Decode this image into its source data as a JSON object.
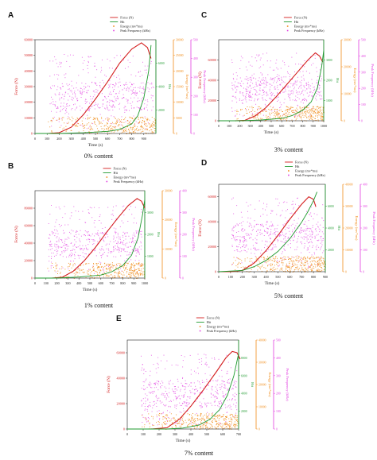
{
  "colors": {
    "force": "#d42020",
    "hit": "#1f9a2f",
    "energy": "#f08c1a",
    "peak": "#e23fe0",
    "axis": "#222222"
  },
  "chart_data": [
    {
      "letter": "A",
      "caption": "0% content",
      "type": "line",
      "xlabel": "Time (s)",
      "ylabel": "Force (N)",
      "hit_label": "Hit",
      "energy_label": "Energy (mv*ms)",
      "peak_label": "Peak Frequency (kHz)",
      "legend": [
        "Force (N)",
        "Hit",
        "Energy (mv*ms)",
        "Peak Frequency (kHz)"
      ],
      "xlim": [
        0,
        1000
      ],
      "ylim": [
        0,
        60000
      ],
      "xticks": [
        "0",
        "100",
        "200",
        "300",
        "400",
        "500",
        "600",
        "700",
        "800",
        "900"
      ],
      "yticks": [
        "0",
        "10000",
        "20000",
        "30000",
        "40000",
        "50000",
        "60000"
      ],
      "hit_ticks": [
        "2000",
        "4000",
        "6000"
      ],
      "energy_ticks": [
        "0",
        "5000",
        "10000",
        "15000",
        "20000",
        "25000",
        "30000"
      ],
      "peak_ticks": [
        "0",
        "100",
        "200",
        "300",
        "400",
        "500"
      ],
      "series": [
        {
          "name": "Force (N)",
          "x": [
            0,
            100,
            200,
            300,
            400,
            500,
            600,
            700,
            800,
            880,
            930,
            960
          ],
          "y": [
            0,
            0,
            500,
            4000,
            12000,
            22000,
            33000,
            45000,
            54000,
            58000,
            55000,
            48000
          ]
        },
        {
          "name": "Hit",
          "x": [
            0,
            200,
            400,
            600,
            700,
            800,
            850,
            900,
            940,
            960
          ],
          "y": [
            0,
            0,
            50,
            150,
            300,
            700,
            1300,
            2600,
            4600,
            6500
          ]
        }
      ]
    },
    {
      "letter": "B",
      "caption": "1% content",
      "type": "line",
      "xlabel": "Time (s)",
      "ylabel": "Force (N)",
      "hit_label": "Hit",
      "energy_label": "Energy (mv*ms)",
      "peak_label": "Peak Frequency (kHz)",
      "legend": [
        "Force (N)",
        "Hit",
        "Energy (mv*ms)",
        "Peak Frequency (kHz)"
      ],
      "xlim": [
        0,
        1000
      ],
      "ylim": [
        0,
        100000
      ],
      "xticks": [
        "0",
        "100",
        "200",
        "300",
        "400",
        "500",
        "600",
        "700",
        "800",
        "900",
        "1000"
      ],
      "yticks": [
        "0",
        "20000",
        "40000",
        "60000",
        "80000"
      ],
      "hit_ticks": [
        "1000",
        "2000",
        "3000"
      ],
      "energy_ticks": [
        "0",
        "10000",
        "20000",
        "30000"
      ],
      "peak_ticks": [
        "0",
        "100",
        "200",
        "300",
        "400"
      ],
      "series": [
        {
          "name": "Force (N)",
          "x": [
            0,
            150,
            250,
            350,
            450,
            550,
            650,
            750,
            850,
            930,
            970,
            1000
          ],
          "y": [
            0,
            0,
            1000,
            8000,
            20000,
            35000,
            52000,
            68000,
            83000,
            91000,
            88000,
            80000
          ]
        },
        {
          "name": "Hit",
          "x": [
            0,
            200,
            400,
            600,
            700,
            800,
            880,
            940,
            980,
            1000
          ],
          "y": [
            0,
            0,
            40,
            120,
            250,
            500,
            900,
            1600,
            2500,
            3100
          ]
        }
      ]
    },
    {
      "letter": "C",
      "caption": "3% content",
      "type": "line",
      "xlabel": "Time (s)",
      "ylabel": "Force (N)",
      "hit_label": "Hit",
      "energy_label": "Energy (mv*ms)",
      "peak_label": "Peak Frequency (kHz)",
      "legend": [
        "Force (N)",
        "Hit",
        "Energy (mv*ms)",
        "Peak Frequency (kHz)"
      ],
      "xlim": [
        0,
        1000
      ],
      "ylim": [
        0,
        80000
      ],
      "xticks": [
        "0",
        "100",
        "200",
        "300",
        "400",
        "500",
        "600",
        "700",
        "800",
        "900",
        "1000"
      ],
      "yticks": [
        "0",
        "20000",
        "40000",
        "60000"
      ],
      "hit_ticks": [
        "1000",
        "2000",
        "3000"
      ],
      "energy_ticks": [
        "0",
        "10000",
        "20000",
        "30000"
      ],
      "peak_ticks": [
        "0",
        "100",
        "200",
        "300",
        "400",
        "500"
      ],
      "series": [
        {
          "name": "Force (N)",
          "x": [
            0,
            150,
            250,
            350,
            450,
            550,
            650,
            750,
            850,
            920,
            960,
            990
          ],
          "y": [
            0,
            0,
            500,
            5000,
            13000,
            24000,
            36000,
            48000,
            60000,
            67000,
            64000,
            58000
          ]
        },
        {
          "name": "Hit",
          "x": [
            0,
            200,
            400,
            600,
            700,
            800,
            880,
            940,
            980,
            1000
          ],
          "y": [
            0,
            0,
            30,
            100,
            220,
            450,
            800,
            1400,
            2300,
            3000
          ]
        }
      ]
    },
    {
      "letter": "D",
      "caption": "5% content",
      "type": "line",
      "xlabel": "Time (s)",
      "ylabel": "Force (N)",
      "hit_label": "Hit",
      "energy_label": "Energy (mv*ms)",
      "peak_label": "Peak Frequency (kHz)",
      "legend": [
        "Force (N)",
        "Hit",
        "Energy (mv*ms)",
        "Peak Frequency (kHz)"
      ],
      "xlim": [
        0,
        900
      ],
      "ylim": [
        0,
        70000
      ],
      "xticks": [
        "0",
        "100",
        "200",
        "300",
        "400",
        "500",
        "600",
        "700",
        "800",
        "900"
      ],
      "yticks": [
        "0",
        "20000",
        "40000",
        "60000"
      ],
      "hit_ticks": [
        "2000",
        "4000",
        "6000"
      ],
      "energy_ticks": [
        "0",
        "10000",
        "20000",
        "30000",
        "40000"
      ],
      "peak_ticks": [
        "0",
        "100",
        "200",
        "300",
        "400"
      ],
      "series": [
        {
          "name": "Force (N)",
          "x": [
            0,
            100,
            200,
            300,
            400,
            500,
            600,
            700,
            760,
            800,
            820
          ],
          "y": [
            0,
            0,
            1000,
            7000,
            17000,
            29000,
            42000,
            54000,
            60000,
            58000,
            52000
          ]
        },
        {
          "name": "Hit",
          "x": [
            0,
            200,
            300,
            400,
            500,
            600,
            700,
            750,
            800,
            830
          ],
          "y": [
            0,
            100,
            400,
            900,
            1600,
            2600,
            3900,
            4700,
            5600,
            6300
          ]
        }
      ]
    },
    {
      "letter": "E",
      "caption": "7% content",
      "type": "line",
      "xlabel": "Time (s)",
      "ylabel": "Force (N)",
      "hit_label": "Hit",
      "energy_label": "Energy (mv*ms)",
      "peak_label": "Peak Frequency (kHz)",
      "legend": [
        "Force (N)",
        "Hit",
        "Energy (mv*ms)",
        "Peak Frequency (kHz)"
      ],
      "xlim": [
        0,
        700
      ],
      "ylim": [
        0,
        70000
      ],
      "xticks": [
        "0",
        "100",
        "200",
        "300",
        "400",
        "500",
        "600",
        "700"
      ],
      "yticks": [
        "0",
        "20000",
        "40000",
        "60000"
      ],
      "hit_ticks": [
        "2000",
        "4000",
        "6000",
        "8000"
      ],
      "energy_ticks": [
        "0",
        "10000",
        "20000",
        "30000",
        "40000"
      ],
      "peak_ticks": [
        "0",
        "100",
        "200",
        "300",
        "400",
        "500"
      ],
      "series": [
        {
          "name": "Force (N)",
          "x": [
            0,
            150,
            250,
            330,
            400,
            480,
            560,
            620,
            660,
            690,
            710
          ],
          "y": [
            0,
            0,
            1000,
            8000,
            18000,
            31000,
            45000,
            56000,
            61000,
            60000,
            55000
          ]
        },
        {
          "name": "Hit",
          "x": [
            0,
            250,
            350,
            450,
            520,
            580,
            630,
            670,
            700
          ],
          "y": [
            0,
            0,
            100,
            400,
            1000,
            2000,
            3500,
            5500,
            7800
          ]
        }
      ]
    }
  ]
}
